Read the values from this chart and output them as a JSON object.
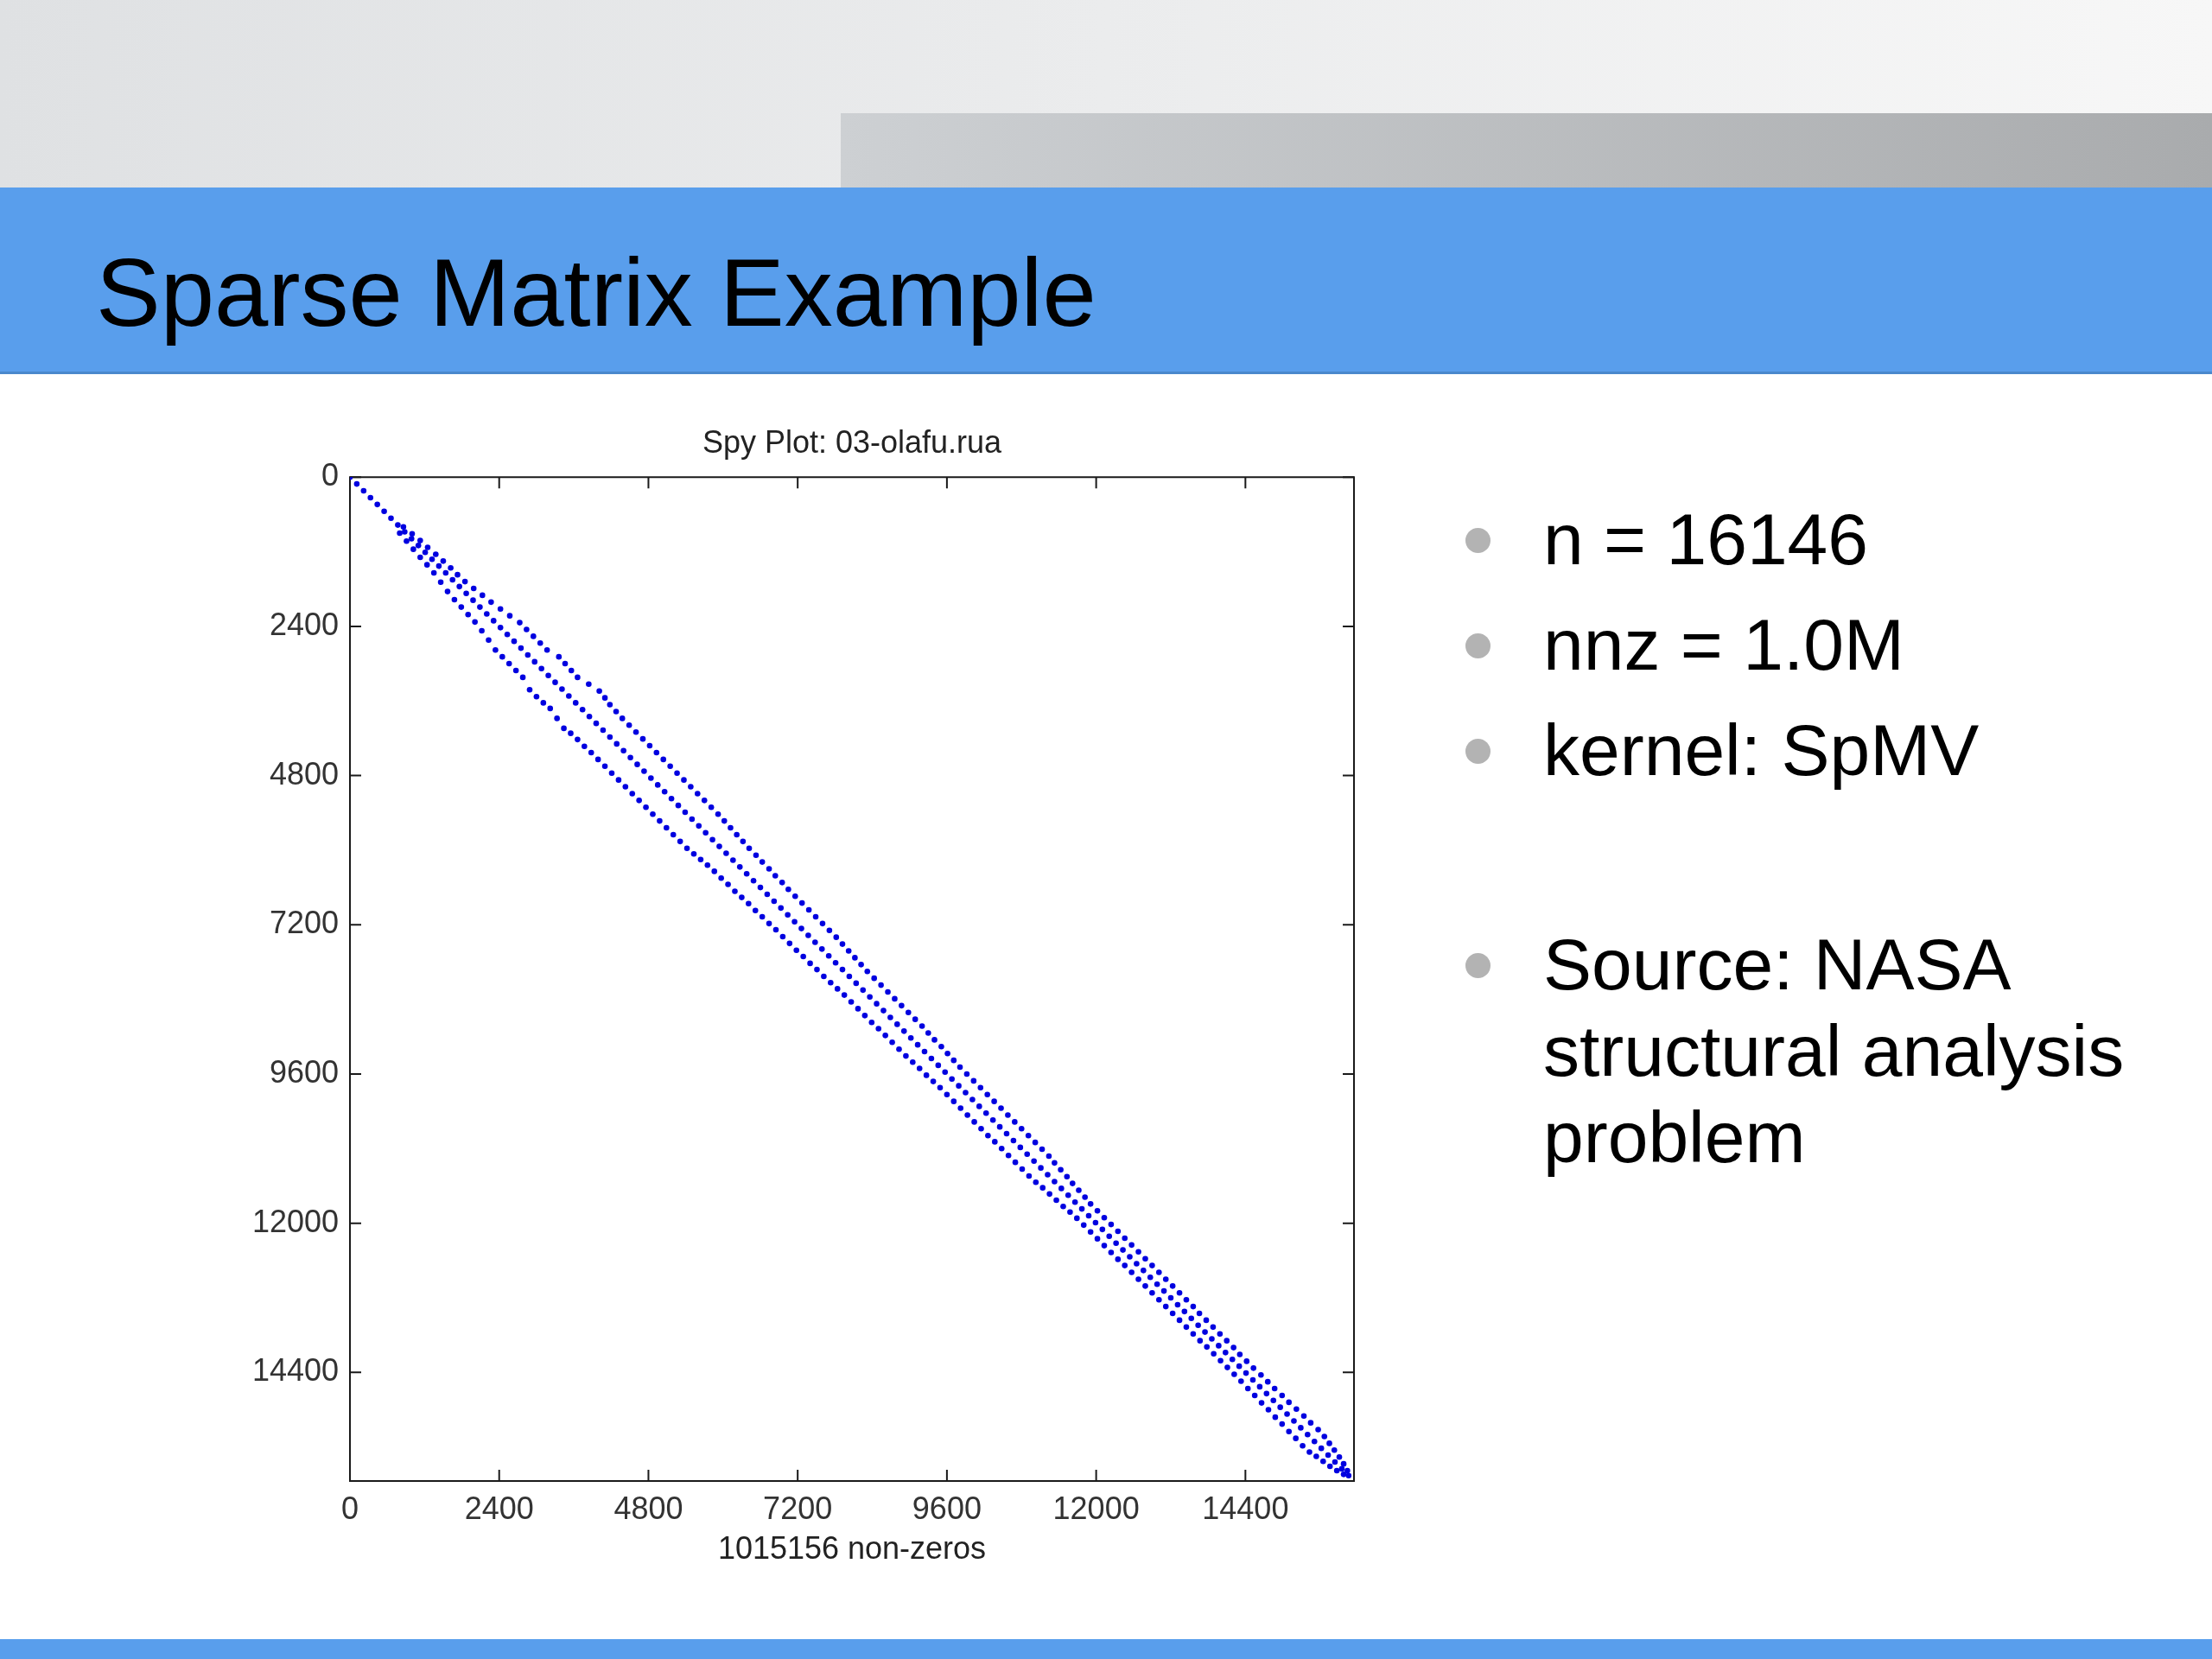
{
  "chart_data": {
    "type": "scatter",
    "title": "Sparse Matrix Example",
    "subtitle": "Spy Plot: 03-olafu.rua",
    "xlabel": "1015156 non-zeros",
    "annotations": [
      "n = 16146",
      "nnz = 1.0M",
      "kernel: SpMV",
      "Source: NASA structural analysis problem"
    ],
    "xlim": [
      0,
      16146
    ],
    "ylim": [
      16146,
      0
    ],
    "xticks": [
      0,
      2400,
      4800,
      7200,
      9600,
      12000,
      14400
    ],
    "yticks": [
      0,
      2400,
      4800,
      7200,
      9600,
      12000,
      14400
    ],
    "marker": "circle",
    "series": [
      {
        "color": "#0000e0",
        "x": [
          0,
          110,
          220,
          330,
          440,
          550,
          660,
          770,
          880,
          990,
          1100,
          1210,
          1320,
          1430,
          1540,
          1650,
          1760,
          1870,
          1980,
          2090,
          2200,
          2310,
          2420,
          2530,
          2640,
          2750,
          2860,
          2970,
          3080,
          3190,
          3300,
          3410,
          3520,
          3630,
          3740,
          3850,
          3960,
          4070,
          4180,
          4290,
          4400,
          4510,
          4620,
          4730,
          4840,
          4950,
          5060,
          5170,
          5280,
          5390,
          5500,
          5610,
          5720,
          5830,
          5940,
          6050,
          6160,
          6270,
          6380,
          6490,
          6600,
          6710,
          6820,
          6930,
          7040,
          7150,
          7260,
          7370,
          7480,
          7590,
          7700,
          7810,
          7920,
          8030,
          8140,
          8250,
          8360,
          8470,
          8580,
          8690,
          8800,
          8910,
          9020,
          9130,
          9240,
          9350,
          9460,
          9570,
          9680,
          9790,
          9900,
          10010,
          10120,
          10230,
          10340,
          10450,
          10560,
          10670,
          10780,
          10890,
          11000,
          11110,
          11220,
          11330,
          11440,
          11550,
          11660,
          11770,
          11880,
          11990,
          12100,
          12210,
          12320,
          12430,
          12540,
          12650,
          12760,
          12870,
          12980,
          13090,
          13200,
          13310,
          13420,
          13530,
          13640,
          13750,
          13860,
          13970,
          14080,
          14190,
          14300,
          14410,
          14520,
          14630,
          14740,
          14850,
          14960,
          15070,
          15180,
          15290,
          15400,
          15510,
          15620,
          15730,
          15840,
          15950,
          16060
        ],
        "values": [
          0,
          110,
          220,
          330,
          440,
          550,
          660,
          770,
          880,
          990,
          1100,
          1210,
          1320,
          1430,
          1540,
          1650,
          1760,
          1870,
          1980,
          2090,
          2200,
          2310,
          2420,
          2530,
          2640,
          2750,
          2860,
          2970,
          3080,
          3190,
          3300,
          3410,
          3520,
          3630,
          3740,
          3850,
          3960,
          4070,
          4180,
          4290,
          4400,
          4510,
          4620,
          4730,
          4840,
          4950,
          5060,
          5170,
          5280,
          5390,
          5500,
          5610,
          5720,
          5830,
          5940,
          6050,
          6160,
          6270,
          6380,
          6490,
          6600,
          6710,
          6820,
          6930,
          7040,
          7150,
          7260,
          7370,
          7480,
          7590,
          7700,
          7810,
          7920,
          8030,
          8140,
          8250,
          8360,
          8470,
          8580,
          8690,
          8800,
          8910,
          9020,
          9130,
          9240,
          9350,
          9460,
          9570,
          9680,
          9790,
          9900,
          10010,
          10120,
          10230,
          10340,
          10450,
          10560,
          10670,
          10780,
          10890,
          11000,
          11110,
          11220,
          11330,
          11440,
          11550,
          11660,
          11770,
          11880,
          11990,
          12100,
          12210,
          12320,
          12430,
          12540,
          12650,
          12760,
          12870,
          12980,
          13090,
          13200,
          13310,
          13420,
          13530,
          13640,
          13750,
          13860,
          13970,
          14080,
          14190,
          14300,
          14410,
          14520,
          14630,
          14740,
          14850,
          14960,
          15070,
          15180,
          15290,
          15400,
          15510,
          15620,
          15730,
          15840,
          15950,
          16060
        ]
      },
      {
        "color": "#0000e0",
        "x": [
          860,
          1000,
          1130,
          1250,
          1380,
          1500,
          1620,
          1730,
          1850,
          1990,
          2130,
          2270,
          2420,
          2570,
          2730,
          2840,
          2950,
          3060,
          3170,
          3360,
          3460,
          3560,
          3660,
          3840,
          4010,
          4100,
          4180,
          4280,
          4380,
          4490,
          4600,
          4710,
          4820,
          4930,
          5040,
          5150,
          5260,
          5370,
          5480,
          5590,
          5700,
          5810,
          5920,
          6020,
          6120,
          6220,
          6320,
          6420,
          6530,
          6630,
          6740,
          6840,
          6950,
          7050,
          7160,
          7270,
          7380,
          7490,
          7600,
          7710,
          7820,
          7920,
          8020,
          8120,
          8220,
          8320,
          8430,
          8540,
          8650,
          8760,
          8870,
          8980,
          9090,
          9200,
          9300,
          9400,
          9510,
          9610,
          9710,
          9810,
          9920,
          10030,
          10140,
          10250,
          10360,
          10470,
          10580,
          10690,
          10800,
          10910,
          11020,
          11130,
          11240,
          11330,
          11430,
          11530,
          11620,
          11720,
          11820,
          11910,
          12020,
          12130,
          12240,
          12350,
          12460,
          12570,
          12680,
          12790,
          12900,
          13010,
          13120,
          13230,
          13340,
          13450,
          13560,
          13660,
          13770,
          13880,
          13990,
          14100,
          14210,
          14310,
          14420,
          14530,
          14650,
          14760,
          14870,
          14990,
          15100,
          15220,
          15340,
          15450,
          15570,
          15670,
          15750,
          15830,
          15910,
          15980,
          16040
        ],
        "values": [
          800,
          910,
          1020,
          1130,
          1240,
          1350,
          1460,
          1570,
          1680,
          1790,
          1900,
          2010,
          2120,
          2230,
          2340,
          2450,
          2560,
          2670,
          2780,
          2890,
          3000,
          3110,
          3220,
          3330,
          3440,
          3550,
          3660,
          3770,
          3880,
          3990,
          4100,
          4210,
          4320,
          4430,
          4540,
          4650,
          4760,
          4870,
          4980,
          5090,
          5200,
          5310,
          5420,
          5530,
          5640,
          5750,
          5860,
          5970,
          6080,
          6190,
          6300,
          6410,
          6520,
          6630,
          6740,
          6850,
          6960,
          7070,
          7180,
          7290,
          7400,
          7510,
          7620,
          7730,
          7840,
          7950,
          8060,
          8170,
          8280,
          8390,
          8500,
          8610,
          8720,
          8830,
          8940,
          9050,
          9160,
          9270,
          9380,
          9490,
          9600,
          9710,
          9820,
          9930,
          10040,
          10150,
          10260,
          10370,
          10480,
          10590,
          10700,
          10810,
          10920,
          11030,
          11140,
          11250,
          11360,
          11470,
          11580,
          11690,
          11800,
          11910,
          12020,
          12130,
          12240,
          12350,
          12460,
          12570,
          12680,
          12790,
          12900,
          13010,
          13120,
          13230,
          13340,
          13450,
          13560,
          13670,
          13780,
          13890,
          14000,
          14110,
          14220,
          14330,
          14440,
          14550,
          14660,
          14770,
          14880,
          14990,
          15100,
          15210,
          15320,
          15430,
          15540,
          15650,
          15760,
          15870,
          15980
        ]
      },
      {
        "color": "#0000e0",
        "x": [
          800,
          910,
          1020,
          1130,
          1240,
          1350,
          1460,
          1570,
          1680,
          1790,
          1900,
          2010,
          2120,
          2230,
          2340,
          2450,
          2560,
          2670,
          2780,
          2890,
          3000,
          3110,
          3220,
          3330,
          3440,
          3550,
          3660,
          3770,
          3880,
          3990,
          4100,
          4210,
          4320,
          4430,
          4540,
          4650,
          4760,
          4870,
          4980,
          5090,
          5200,
          5310,
          5420,
          5530,
          5640,
          5750,
          5860,
          5970,
          6080,
          6190,
          6300,
          6410,
          6520,
          6630,
          6740,
          6850,
          6960,
          7070,
          7180,
          7290,
          7400,
          7510,
          7620,
          7730,
          7840,
          7950,
          8060,
          8170,
          8280,
          8390,
          8500,
          8610,
          8720,
          8830,
          8940,
          9050,
          9160,
          9270,
          9380,
          9490,
          9600,
          9710,
          9820,
          9930,
          10040,
          10150,
          10260,
          10370,
          10480,
          10590,
          10700,
          10810,
          10920,
          11030,
          11140,
          11250,
          11360,
          11470,
          11580,
          11690,
          11800,
          11910,
          12020,
          12130,
          12240,
          12350,
          12460,
          12570,
          12680,
          12790,
          12900,
          13010,
          13120,
          13230,
          13340,
          13450,
          13560,
          13670,
          13780,
          13890,
          14000,
          14110,
          14220,
          14330,
          14440,
          14550,
          14660,
          14770,
          14880,
          14990,
          15100,
          15210,
          15320,
          15430,
          15540,
          15650,
          15760,
          15870,
          15980
        ],
        "values": [
          900,
          1030,
          1160,
          1290,
          1410,
          1540,
          1690,
          1840,
          1970,
          2090,
          2210,
          2330,
          2470,
          2620,
          2780,
          2890,
          3000,
          3110,
          3220,
          3420,
          3530,
          3630,
          3720,
          3880,
          4040,
          4120,
          4220,
          4330,
          4430,
          4540,
          4650,
          4760,
          4870,
          4980,
          5090,
          5200,
          5310,
          5420,
          5530,
          5640,
          5750,
          5860,
          5970,
          6060,
          6150,
          6240,
          6340,
          6450,
          6550,
          6660,
          6760,
          6860,
          6970,
          7070,
          7180,
          7280,
          7390,
          7500,
          7610,
          7710,
          7820,
          7920,
          8030,
          8130,
          8230,
          8330,
          8440,
          8550,
          8660,
          8770,
          8870,
          8980,
          9090,
          9200,
          9310,
          9410,
          9510,
          9620,
          9720,
          9820,
          9930,
          10040,
          10150,
          10260,
          10370,
          10480,
          10590,
          10690,
          10800,
          10910,
          11020,
          11130,
          11240,
          11340,
          11430,
          11530,
          11630,
          11730,
          11820,
          11920,
          12030,
          12140,
          12250,
          12360,
          12470,
          12580,
          12680,
          12790,
          12900,
          13010,
          13120,
          13230,
          13340,
          13450,
          13560,
          13670,
          13780,
          13890,
          13990,
          14100,
          14210,
          14320,
          14430,
          14540,
          14660,
          14770,
          14890,
          15000,
          15120,
          15230,
          15350,
          15460,
          15580,
          15680,
          15750,
          15830,
          15910,
          15980,
          16040
        ]
      }
    ]
  }
}
